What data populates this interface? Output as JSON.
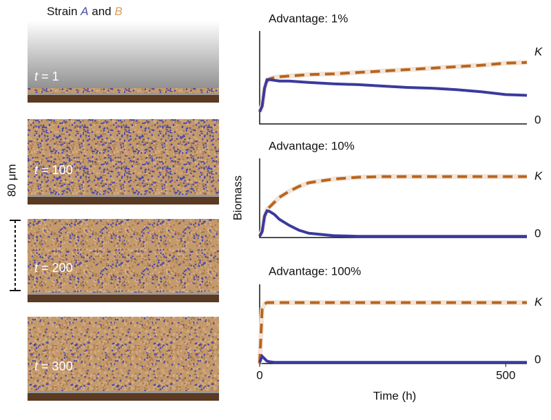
{
  "snapshots": {
    "title": {
      "prefix": "Strain",
      "a": "A",
      "middle": "and",
      "b": "B"
    },
    "panels": [
      {
        "var": "t",
        "label": "= 1"
      },
      {
        "var": "t",
        "label": "= 100"
      },
      {
        "var": "t",
        "label": "= 200"
      },
      {
        "var": "t",
        "label": "= 300"
      }
    ],
    "scale_bar": "80 μm"
  },
  "chart_data": [
    {
      "type": "line",
      "title": "Advantage: 1%",
      "x": [
        0,
        5,
        10,
        15,
        20,
        30,
        40,
        60,
        80,
        100,
        150,
        200,
        250,
        300,
        350,
        400,
        450,
        500,
        543
      ],
      "series": [
        {
          "color": "#b8651e",
          "dashed": true,
          "values": [
            0.17,
            0.25,
            0.5,
            0.6,
            0.63,
            0.65,
            0.66,
            0.67,
            0.68,
            0.69,
            0.7,
            0.72,
            0.74,
            0.76,
            0.78,
            0.8,
            0.82,
            0.85,
            0.86
          ]
        },
        {
          "color": "#3a3a9e",
          "values": [
            0.17,
            0.25,
            0.5,
            0.62,
            0.62,
            0.61,
            0.6,
            0.6,
            0.59,
            0.58,
            0.56,
            0.55,
            0.53,
            0.51,
            0.5,
            0.48,
            0.45,
            0.41,
            0.4
          ]
        }
      ],
      "xlim": [
        0,
        543
      ],
      "ylim": [
        0,
        1.3
      ],
      "yticks": [
        0,
        {
          "value": 1,
          "label": "K"
        }
      ]
    },
    {
      "type": "line",
      "title": "Advantage: 10%",
      "y_label": "Biomass",
      "x": [
        0,
        5,
        10,
        15,
        20,
        30,
        40,
        60,
        80,
        100,
        150,
        200,
        250,
        300,
        350,
        400,
        450,
        500,
        543
      ],
      "series": [
        {
          "color": "#b8651e",
          "dashed": true,
          "values": [
            0.02,
            0.1,
            0.35,
            0.46,
            0.5,
            0.58,
            0.66,
            0.76,
            0.84,
            0.9,
            0.96,
            0.99,
            1,
            1,
            1,
            1,
            1,
            1,
            1
          ]
        },
        {
          "color": "#3a3a9e",
          "values": [
            0.02,
            0.1,
            0.35,
            0.44,
            0.43,
            0.38,
            0.3,
            0.2,
            0.12,
            0.07,
            0.03,
            0.02,
            0.02,
            0.02,
            0.02,
            0.02,
            0.02,
            0.02,
            0.02
          ]
        }
      ],
      "xlim": [
        0,
        543
      ],
      "ylim": [
        0,
        1.3
      ],
      "yticks": [
        0,
        {
          "value": 1,
          "label": "K"
        }
      ]
    },
    {
      "type": "line",
      "title": "Advantage: 100%",
      "x_label": "Time (h)",
      "x": [
        0,
        5,
        10,
        15,
        20,
        30,
        40,
        60,
        80,
        100,
        150,
        200,
        250,
        300,
        350,
        400,
        450,
        500,
        543
      ],
      "series": [
        {
          "color": "#b8651e",
          "dashed": true,
          "values": [
            0,
            0.9,
            0.98,
            1,
            1,
            1,
            1,
            1,
            1,
            1,
            1,
            1,
            1,
            1,
            1,
            1,
            1,
            1,
            1
          ]
        },
        {
          "color": "#3a3a9e",
          "values": [
            0.02,
            0.12,
            0.08,
            0.04,
            0.03,
            0.02,
            0.02,
            0.02,
            0.02,
            0.02,
            0.02,
            0.02,
            0.02,
            0.02,
            0.02,
            0.02,
            0.02,
            0.02,
            0.02
          ]
        }
      ],
      "xlim": [
        0,
        543
      ],
      "ylim": [
        0,
        1.3
      ],
      "xticks": [
        0,
        500
      ],
      "yticks": [
        0,
        {
          "value": 1,
          "label": "K"
        }
      ]
    }
  ]
}
